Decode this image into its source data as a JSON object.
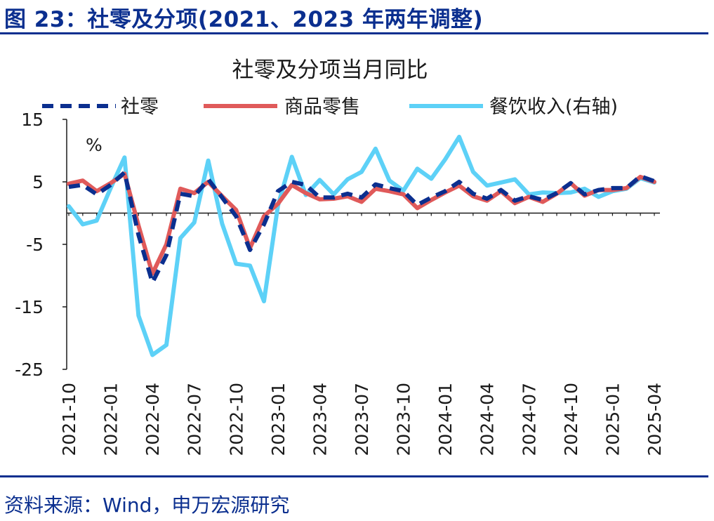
{
  "figure_title": "图 23：社零及分项(2021、2023 年两年调整)",
  "source_note": "资料来源：Wind，申万宏源研究",
  "chart_data": {
    "type": "line",
    "title": "社零及分项当月同比",
    "y_unit_label": "%",
    "ylim": [
      -25,
      15
    ],
    "y_ticks": [
      15,
      5,
      -5,
      -15,
      -25
    ],
    "grid": false,
    "legend_position": "top",
    "x": [
      "2021-10",
      "2021-11",
      "2021-12",
      "2022-01",
      "2022-02",
      "2022-03",
      "2022-04",
      "2022-05",
      "2022-06",
      "2022-07",
      "2022-08",
      "2022-09",
      "2022-10",
      "2022-11",
      "2022-12",
      "2023-01",
      "2023-02",
      "2023-03",
      "2023-04",
      "2023-05",
      "2023-06",
      "2023-07",
      "2023-08",
      "2023-09",
      "2023-10",
      "2023-11",
      "2023-12",
      "2024-01",
      "2024-02",
      "2024-03",
      "2024-04",
      "2024-05",
      "2024-06",
      "2024-07",
      "2024-08",
      "2024-09",
      "2024-10",
      "2024-11",
      "2024-12",
      "2025-01",
      "2025-02",
      "2025-03",
      "2025-04"
    ],
    "x_tick_labels": [
      "2021-10",
      "2022-01",
      "2022-04",
      "2022-07",
      "2022-10",
      "2023-01",
      "2023-04",
      "2023-07",
      "2023-10",
      "2024-01",
      "2024-04",
      "2024-07",
      "2024-10",
      "2025-01",
      "2025-04"
    ],
    "series": [
      {
        "name": "社零",
        "color": "#0b2f8f",
        "style": "dashed",
        "values": [
          4.2,
          4.5,
          3.0,
          4.5,
          6.5,
          -3.5,
          -11.1,
          -6.7,
          3.1,
          2.7,
          5.4,
          2.5,
          -0.5,
          -5.9,
          -1.8,
          3.5,
          5.0,
          4.5,
          2.5,
          2.5,
          3.1,
          2.5,
          4.6,
          4.0,
          3.5,
          1.3,
          2.5,
          3.5,
          5.0,
          3.1,
          2.3,
          3.7,
          2.0,
          2.7,
          2.1,
          3.2,
          4.8,
          3.0,
          3.7,
          4.0,
          4.0,
          5.9,
          5.1
        ]
      },
      {
        "name": "商品零售",
        "color": "#e05a5a",
        "style": "solid",
        "values": [
          4.7,
          5.2,
          3.5,
          4.8,
          6.3,
          -2.0,
          -9.7,
          -5.0,
          3.9,
          3.2,
          5.0,
          2.7,
          0.5,
          -5.6,
          -0.5,
          1.5,
          4.5,
          3.2,
          2.2,
          2.3,
          2.7,
          1.8,
          3.9,
          3.5,
          3.0,
          0.8,
          2.1,
          3.3,
          4.4,
          2.7,
          2.0,
          3.5,
          1.6,
          2.6,
          1.8,
          3.1,
          4.8,
          2.8,
          3.7,
          3.7,
          4.0,
          5.8,
          5.0
        ]
      },
      {
        "name": "餐饮收入(右轴)",
        "color": "#5dd1f7",
        "style": "solid",
        "values": [
          1.1,
          -1.8,
          -1.2,
          4.0,
          8.9,
          -16.4,
          -22.7,
          -21.1,
          -4.0,
          -1.5,
          8.4,
          -1.7,
          -8.1,
          -8.4,
          -14.1,
          1.2,
          9.0,
          2.9,
          5.3,
          3.0,
          5.4,
          6.6,
          10.3,
          5.2,
          3.6,
          7.1,
          5.5,
          8.6,
          12.2,
          6.6,
          4.4,
          4.9,
          5.4,
          3.0,
          3.3,
          3.2,
          3.3,
          3.9,
          2.6,
          3.5,
          3.9,
          5.6,
          4.9
        ]
      }
    ]
  }
}
